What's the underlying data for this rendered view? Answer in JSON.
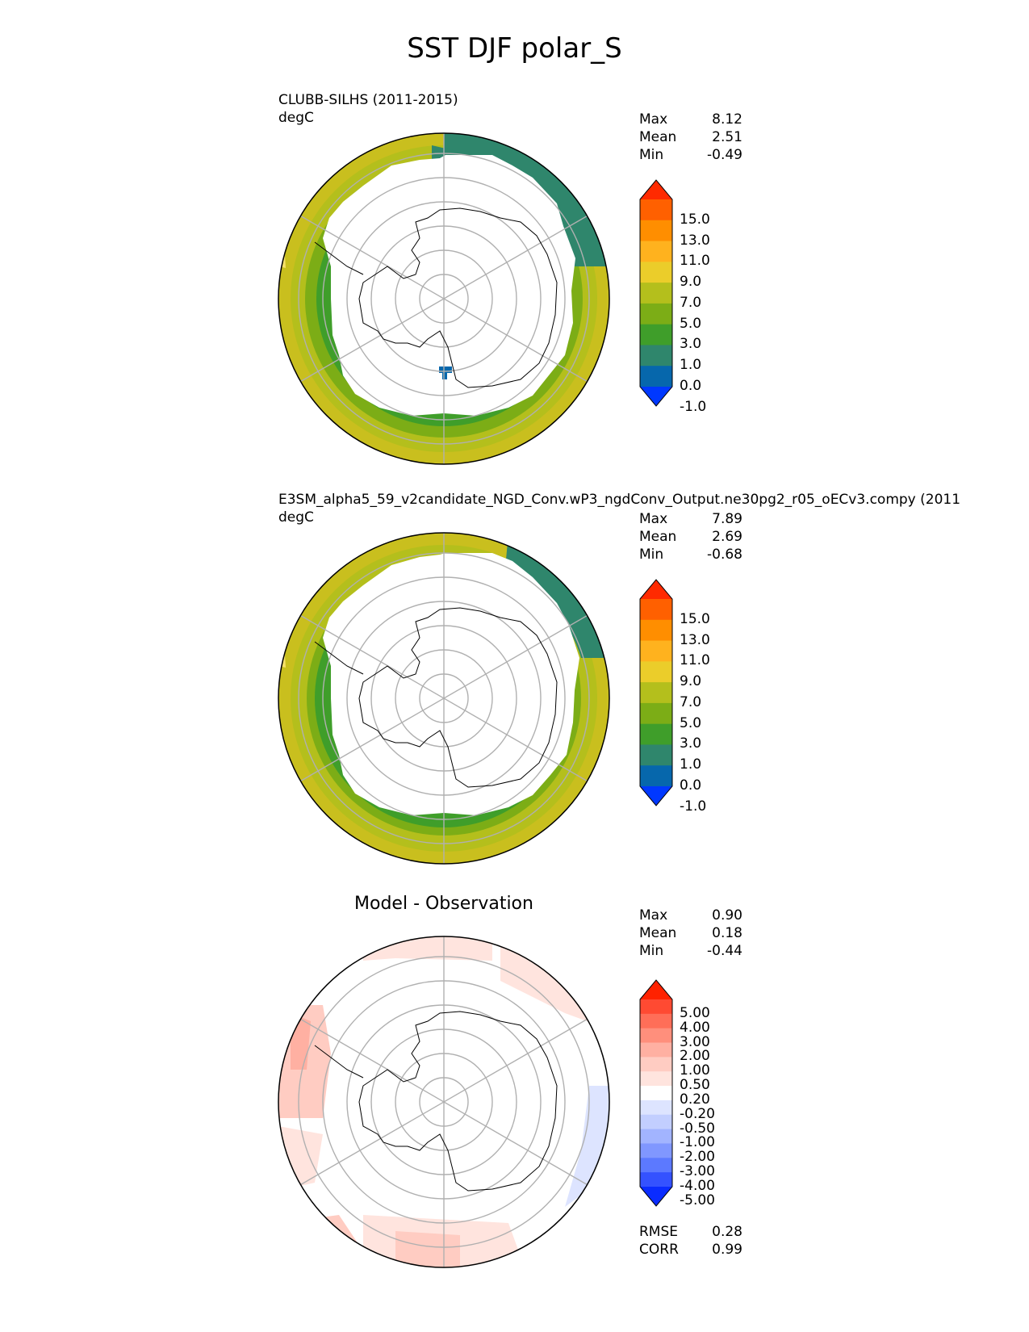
{
  "title": "SST DJF polar_S",
  "panels": [
    {
      "id": "test",
      "title": "CLUBB-SILHS (2011-2015)",
      "units": "degC",
      "stats": [
        {
          "label": "Max",
          "value": "8.12"
        },
        {
          "label": "Mean",
          "value": "2.51"
        },
        {
          "label": "Min",
          "value": "-0.49"
        }
      ],
      "colorbar": {
        "extend": "both",
        "ticks": [
          "15.0",
          "13.0",
          "11.0",
          "9.0",
          "7.0",
          "5.0",
          "3.0",
          "1.0",
          "0.0",
          "-1.0"
        ],
        "colors": [
          "#ff2a00",
          "#ff6000",
          "#ff8e00",
          "#ffb21e",
          "#ebcd2a",
          "#b4bf1c",
          "#7cad16",
          "#3f9e2a",
          "#2f866c",
          "#0667ac",
          "#0038ff"
        ]
      }
    },
    {
      "id": "reference",
      "title": "E3SM_alpha5_59_v2candidate_NGD_Conv.wP3_ngdConv_Output.ne30pg2_r05_oECv3.compy (2011",
      "units": "degC",
      "stats": [
        {
          "label": "Max",
          "value": "7.89"
        },
        {
          "label": "Mean",
          "value": "2.69"
        },
        {
          "label": "Min",
          "value": "-0.68"
        }
      ],
      "colorbar": {
        "extend": "both",
        "ticks": [
          "15.0",
          "13.0",
          "11.0",
          "9.0",
          "7.0",
          "5.0",
          "3.0",
          "1.0",
          "0.0",
          "-1.0"
        ],
        "colors": [
          "#ff2a00",
          "#ff6000",
          "#ff8e00",
          "#ffb21e",
          "#ebcd2a",
          "#b4bf1c",
          "#7cad16",
          "#3f9e2a",
          "#2f866c",
          "#0667ac",
          "#0038ff"
        ]
      }
    },
    {
      "id": "diff",
      "title": "Model - Observation",
      "stats": [
        {
          "label": "Max",
          "value": "0.90"
        },
        {
          "label": "Mean",
          "value": "0.18"
        },
        {
          "label": "Min",
          "value": "-0.44"
        }
      ],
      "colorbar": {
        "extend": "both",
        "ticks": [
          "5.00",
          "4.00",
          "3.00",
          "2.00",
          "1.00",
          "0.50",
          "0.20",
          "-0.20",
          "-0.50",
          "-1.00",
          "-2.00",
          "-3.00",
          "-4.00",
          "-5.00"
        ],
        "colors": [
          "#ff2200",
          "#ff4a32",
          "#ff6e58",
          "#ff8f7c",
          "#ffb0a2",
          "#ffccc2",
          "#ffe4de",
          "#ffffff",
          "#dde4ff",
          "#c2ceff",
          "#a2b4ff",
          "#8097ff",
          "#5c79ff",
          "#3452ff",
          "#0a2cff"
        ]
      },
      "metrics": [
        {
          "label": "RMSE",
          "value": "0.28"
        },
        {
          "label": "CORR",
          "value": "0.99"
        }
      ]
    }
  ]
}
